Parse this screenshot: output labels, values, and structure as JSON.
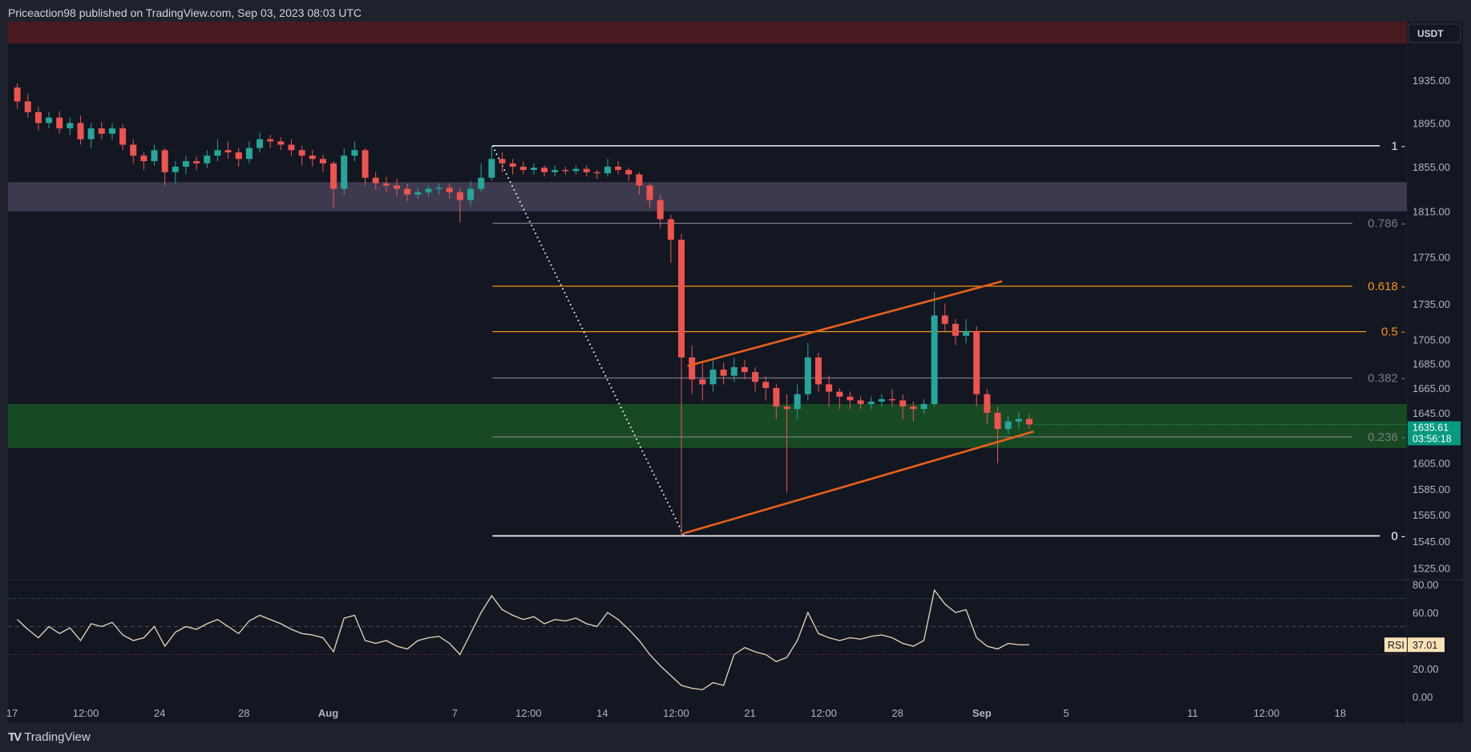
{
  "header": {
    "text": "Priceaction98 published on TradingView.com, Sep 03, 2023 08:03 UTC"
  },
  "footer": {
    "logo_text": "TradingView"
  },
  "currency_button": "USDT",
  "colors": {
    "up": "#26a69a",
    "down": "#ef5350",
    "fib_gray": "#787b86",
    "fib_orange": "#f7931a",
    "channel": "#e8601c",
    "rsi_line": "#e8d8b8",
    "zone_red": "#4a1a21",
    "zone_purple": "#3d3a4f",
    "zone_green": "#174a22",
    "last_price_bg": "#089981",
    "rsi_label_bg": "#fbe2b6"
  },
  "chart_data": [
    {
      "type": "candlestick",
      "title": "",
      "yscale": "log",
      "ylim": [
        1510,
        1990
      ],
      "xlim": [
        "2023-07-17T00:00",
        "2023-09-22T00:00"
      ],
      "grid": false,
      "price_ticks": [
        "1935.00",
        "1895.00",
        "1855.00",
        "1815.00",
        "1775.00",
        "1735.00",
        "1705.00",
        "1685.00",
        "1665.00",
        "1645.00",
        "1605.00",
        "1585.00",
        "1565.00",
        "1545.00",
        "1525.00"
      ],
      "time_ticks": [
        {
          "label": "17",
          "date": "2023-07-17T00:00"
        },
        {
          "label": "12:00",
          "date": "2023-07-20T12:00"
        },
        {
          "label": "24",
          "date": "2023-07-24T00:00"
        },
        {
          "label": "28",
          "date": "2023-07-28T00:00"
        },
        {
          "label": "Aug",
          "date": "2023-08-01T00:00",
          "bold": true
        },
        {
          "label": "7",
          "date": "2023-08-07T00:00"
        },
        {
          "label": "12:00",
          "date": "2023-08-10T12:00"
        },
        {
          "label": "14",
          "date": "2023-08-14T00:00"
        },
        {
          "label": "12:00",
          "date": "2023-08-17T12:00"
        },
        {
          "label": "21",
          "date": "2023-08-21T00:00"
        },
        {
          "label": "12:00",
          "date": "2023-08-24T12:00"
        },
        {
          "label": "28",
          "date": "2023-08-28T00:00"
        },
        {
          "label": "Sep",
          "date": "2023-09-01T00:00",
          "bold": true
        },
        {
          "label": "5",
          "date": "2023-09-05T00:00"
        },
        {
          "label": "11",
          "date": "2023-09-11T00:00"
        },
        {
          "label": "12:00",
          "date": "2023-09-14T12:00"
        },
        {
          "label": "18",
          "date": "2023-09-18T00:00"
        }
      ],
      "last_price": {
        "price": "1635.61",
        "countdown": "03:56:18",
        "value": 1635.61
      },
      "zones": [
        {
          "name": "resistance-top",
          "from": 1970,
          "to": 1991,
          "color": "zone_red"
        },
        {
          "name": "supply",
          "from": 1815,
          "to": 1841,
          "color": "zone_purple"
        },
        {
          "name": "support",
          "from": 1617,
          "to": 1652,
          "color": "zone_green"
        }
      ],
      "fib": {
        "start": "2023-08-08T19:00",
        "end": "2023-09-21T00:00",
        "high": 1874,
        "low": 1549,
        "levels": [
          {
            "level": 1,
            "label": "1",
            "color": "#e0e3eb"
          },
          {
            "level": 0.786,
            "label": "0.786",
            "color": "#787b86"
          },
          {
            "level": 0.618,
            "label": "0.618",
            "color": "#f7931a"
          },
          {
            "level": 0.5,
            "label": "0.5",
            "color": "#f7931a"
          },
          {
            "level": 0.382,
            "label": "0.382",
            "color": "#787b86"
          },
          {
            "level": 0.236,
            "label": "0.236",
            "color": "#787b86"
          },
          {
            "level": 0,
            "label": "0",
            "color": "#ffffff"
          }
        ],
        "trend_line": [
          [
            "2023-08-08T19:00",
            1874
          ],
          [
            "2023-08-17T21:00",
            1549
          ]
        ]
      },
      "channel": {
        "upper": [
          [
            "2023-08-18T01:00",
            1683
          ],
          [
            "2023-09-01T23:00",
            1754
          ]
        ],
        "lower": [
          [
            "2023-08-17T21:00",
            1551
          ],
          [
            "2023-09-03T11:00",
            1630
          ]
        ]
      },
      "candles_interval": "12h",
      "candles": [
        [
          "2023-07-17T00:00",
          1928,
          1932,
          1908,
          1915
        ],
        [
          "2023-07-17T12:00",
          1915,
          1922,
          1900,
          1905
        ],
        [
          "2023-07-18T00:00",
          1905,
          1910,
          1888,
          1895
        ],
        [
          "2023-07-18T12:00",
          1895,
          1905,
          1890,
          1900
        ],
        [
          "2023-07-19T00:00",
          1900,
          1906,
          1885,
          1890
        ],
        [
          "2023-07-19T12:00",
          1890,
          1900,
          1884,
          1895
        ],
        [
          "2023-07-20T00:00",
          1895,
          1902,
          1875,
          1880
        ],
        [
          "2023-07-20T12:00",
          1880,
          1895,
          1872,
          1890
        ],
        [
          "2023-07-21T00:00",
          1890,
          1896,
          1880,
          1885
        ],
        [
          "2023-07-21T12:00",
          1885,
          1895,
          1880,
          1890
        ],
        [
          "2023-07-22T00:00",
          1890,
          1894,
          1870,
          1875
        ],
        [
          "2023-07-22T12:00",
          1875,
          1880,
          1858,
          1865
        ],
        [
          "2023-07-23T00:00",
          1865,
          1868,
          1852,
          1860
        ],
        [
          "2023-07-23T12:00",
          1860,
          1875,
          1856,
          1870
        ],
        [
          "2023-07-24T00:00",
          1870,
          1872,
          1838,
          1850
        ],
        [
          "2023-07-24T12:00",
          1850,
          1860,
          1840,
          1855
        ],
        [
          "2023-07-25T00:00",
          1855,
          1865,
          1848,
          1860
        ],
        [
          "2023-07-25T12:00",
          1860,
          1864,
          1852,
          1858
        ],
        [
          "2023-07-26T00:00",
          1858,
          1870,
          1854,
          1865
        ],
        [
          "2023-07-26T12:00",
          1865,
          1880,
          1860,
          1870
        ],
        [
          "2023-07-27T00:00",
          1870,
          1878,
          1862,
          1868
        ],
        [
          "2023-07-27T12:00",
          1868,
          1872,
          1855,
          1862
        ],
        [
          "2023-07-28T00:00",
          1862,
          1878,
          1858,
          1872
        ],
        [
          "2023-07-28T12:00",
          1872,
          1886,
          1868,
          1880
        ],
        [
          "2023-07-29T00:00",
          1880,
          1884,
          1872,
          1878
        ],
        [
          "2023-07-29T12:00",
          1878,
          1882,
          1870,
          1875
        ],
        [
          "2023-07-30T00:00",
          1875,
          1880,
          1865,
          1870
        ],
        [
          "2023-07-30T12:00",
          1870,
          1874,
          1856,
          1865
        ],
        [
          "2023-07-31T00:00",
          1865,
          1870,
          1855,
          1862
        ],
        [
          "2023-07-31T12:00",
          1862,
          1866,
          1850,
          1858
        ],
        [
          "2023-08-01T00:00",
          1858,
          1860,
          1818,
          1835
        ],
        [
          "2023-08-01T12:00",
          1835,
          1872,
          1830,
          1865
        ],
        [
          "2023-08-02T00:00",
          1865,
          1878,
          1860,
          1870
        ],
        [
          "2023-08-02T12:00",
          1870,
          1872,
          1838,
          1845
        ],
        [
          "2023-08-03T00:00",
          1845,
          1850,
          1834,
          1840
        ],
        [
          "2023-08-03T12:00",
          1840,
          1846,
          1832,
          1838
        ],
        [
          "2023-08-04T00:00",
          1838,
          1844,
          1828,
          1835
        ],
        [
          "2023-08-04T12:00",
          1835,
          1840,
          1824,
          1830
        ],
        [
          "2023-08-05T00:00",
          1830,
          1836,
          1826,
          1832
        ],
        [
          "2023-08-05T12:00",
          1832,
          1838,
          1828,
          1835
        ],
        [
          "2023-08-06T00:00",
          1835,
          1840,
          1830,
          1836
        ],
        [
          "2023-08-06T12:00",
          1836,
          1840,
          1826,
          1832
        ],
        [
          "2023-08-07T00:00",
          1832,
          1836,
          1805,
          1825
        ],
        [
          "2023-08-07T12:00",
          1825,
          1842,
          1820,
          1835
        ],
        [
          "2023-08-08T00:00",
          1835,
          1858,
          1832,
          1845
        ],
        [
          "2023-08-08T12:00",
          1845,
          1874,
          1842,
          1862
        ],
        [
          "2023-08-09T00:00",
          1862,
          1868,
          1850,
          1858
        ],
        [
          "2023-08-09T12:00",
          1858,
          1862,
          1848,
          1855
        ],
        [
          "2023-08-10T00:00",
          1855,
          1860,
          1848,
          1852
        ],
        [
          "2023-08-10T12:00",
          1852,
          1858,
          1848,
          1854
        ],
        [
          "2023-08-11T00:00",
          1854,
          1856,
          1846,
          1850
        ],
        [
          "2023-08-11T12:00",
          1850,
          1856,
          1846,
          1852
        ],
        [
          "2023-08-12T00:00",
          1852,
          1855,
          1848,
          1851
        ],
        [
          "2023-08-12T12:00",
          1851,
          1856,
          1848,
          1853
        ],
        [
          "2023-08-13T00:00",
          1853,
          1856,
          1846,
          1850
        ],
        [
          "2023-08-13T12:00",
          1850,
          1852,
          1844,
          1849
        ],
        [
          "2023-08-14T00:00",
          1849,
          1862,
          1846,
          1855
        ],
        [
          "2023-08-14T12:00",
          1855,
          1860,
          1848,
          1852
        ],
        [
          "2023-08-15T00:00",
          1852,
          1854,
          1842,
          1848
        ],
        [
          "2023-08-15T12:00",
          1848,
          1850,
          1830,
          1838
        ],
        [
          "2023-08-16T00:00",
          1838,
          1840,
          1818,
          1825
        ],
        [
          "2023-08-16T12:00",
          1825,
          1830,
          1800,
          1808
        ],
        [
          "2023-08-17T00:00",
          1808,
          1812,
          1770,
          1790
        ],
        [
          "2023-08-17T12:00",
          1790,
          1795,
          1549,
          1690
        ],
        [
          "2023-08-18T00:00",
          1690,
          1700,
          1660,
          1672
        ],
        [
          "2023-08-18T12:00",
          1672,
          1685,
          1655,
          1668
        ],
        [
          "2023-08-19T00:00",
          1668,
          1688,
          1662,
          1680
        ],
        [
          "2023-08-19T12:00",
          1680,
          1686,
          1668,
          1675
        ],
        [
          "2023-08-20T00:00",
          1675,
          1690,
          1670,
          1682
        ],
        [
          "2023-08-20T12:00",
          1682,
          1688,
          1672,
          1678
        ],
        [
          "2023-08-21T00:00",
          1678,
          1682,
          1662,
          1670
        ],
        [
          "2023-08-21T12:00",
          1670,
          1675,
          1655,
          1665
        ],
        [
          "2023-08-22T00:00",
          1665,
          1668,
          1640,
          1650
        ],
        [
          "2023-08-22T12:00",
          1650,
          1660,
          1582,
          1648
        ],
        [
          "2023-08-23T00:00",
          1648,
          1668,
          1640,
          1660
        ],
        [
          "2023-08-23T12:00",
          1660,
          1702,
          1655,
          1690
        ],
        [
          "2023-08-24T00:00",
          1690,
          1694,
          1662,
          1668
        ],
        [
          "2023-08-24T12:00",
          1668,
          1675,
          1650,
          1662
        ],
        [
          "2023-08-25T00:00",
          1662,
          1665,
          1648,
          1658
        ],
        [
          "2023-08-25T12:00",
          1658,
          1662,
          1648,
          1655
        ],
        [
          "2023-08-26T00:00",
          1655,
          1658,
          1648,
          1652
        ],
        [
          "2023-08-26T12:00",
          1652,
          1658,
          1648,
          1654
        ],
        [
          "2023-08-27T00:00",
          1654,
          1660,
          1650,
          1656
        ],
        [
          "2023-08-27T12:00",
          1656,
          1664,
          1650,
          1655
        ],
        [
          "2023-08-28T00:00",
          1655,
          1660,
          1640,
          1650
        ],
        [
          "2023-08-28T12:00",
          1650,
          1654,
          1638,
          1648
        ],
        [
          "2023-08-29T00:00",
          1648,
          1656,
          1644,
          1652
        ],
        [
          "2023-08-29T12:00",
          1652,
          1745,
          1650,
          1725
        ],
        [
          "2023-08-30T00:00",
          1725,
          1735,
          1712,
          1718
        ],
        [
          "2023-08-30T12:00",
          1718,
          1722,
          1700,
          1708
        ],
        [
          "2023-08-31T00:00",
          1708,
          1722,
          1702,
          1712
        ],
        [
          "2023-08-31T12:00",
          1712,
          1716,
          1650,
          1660
        ],
        [
          "2023-09-01T00:00",
          1660,
          1664,
          1636,
          1645
        ],
        [
          "2023-09-01T12:00",
          1645,
          1650,
          1605,
          1632
        ],
        [
          "2023-09-02T00:00",
          1632,
          1642,
          1628,
          1638
        ],
        [
          "2023-09-02T12:00",
          1638,
          1646,
          1632,
          1640
        ],
        [
          "2023-09-03T00:00",
          1640,
          1644,
          1632,
          1635.61
        ]
      ]
    },
    {
      "type": "line",
      "title": "",
      "ylim": [
        0,
        80
      ],
      "ticks": [
        "80.00",
        "60.00",
        "20.00",
        "0.00"
      ],
      "bands": [
        {
          "value": 70,
          "style": "dotted",
          "color": "#2a7f86"
        },
        {
          "value": 50,
          "style": "dashed",
          "color": "#4a4e5a"
        },
        {
          "value": 30,
          "style": "dotted",
          "color": "#8a3a44"
        }
      ],
      "label": "RSI",
      "last_value": "37.01",
      "values": [
        55,
        48,
        42,
        50,
        45,
        49,
        40,
        52,
        50,
        53,
        44,
        40,
        42,
        50,
        36,
        46,
        50,
        48,
        52,
        55,
        50,
        45,
        54,
        58,
        55,
        52,
        48,
        45,
        44,
        42,
        32,
        56,
        58,
        40,
        38,
        40,
        36,
        34,
        40,
        42,
        43,
        38,
        30,
        45,
        60,
        72,
        62,
        58,
        55,
        57,
        52,
        55,
        54,
        56,
        52,
        50,
        60,
        55,
        48,
        40,
        30,
        22,
        15,
        8,
        6,
        5,
        10,
        8,
        30,
        35,
        32,
        30,
        25,
        28,
        40,
        60,
        45,
        42,
        40,
        42,
        41,
        43,
        44,
        42,
        38,
        36,
        40,
        76,
        66,
        60,
        62,
        42,
        36,
        34,
        38,
        37,
        37.01
      ]
    }
  ]
}
